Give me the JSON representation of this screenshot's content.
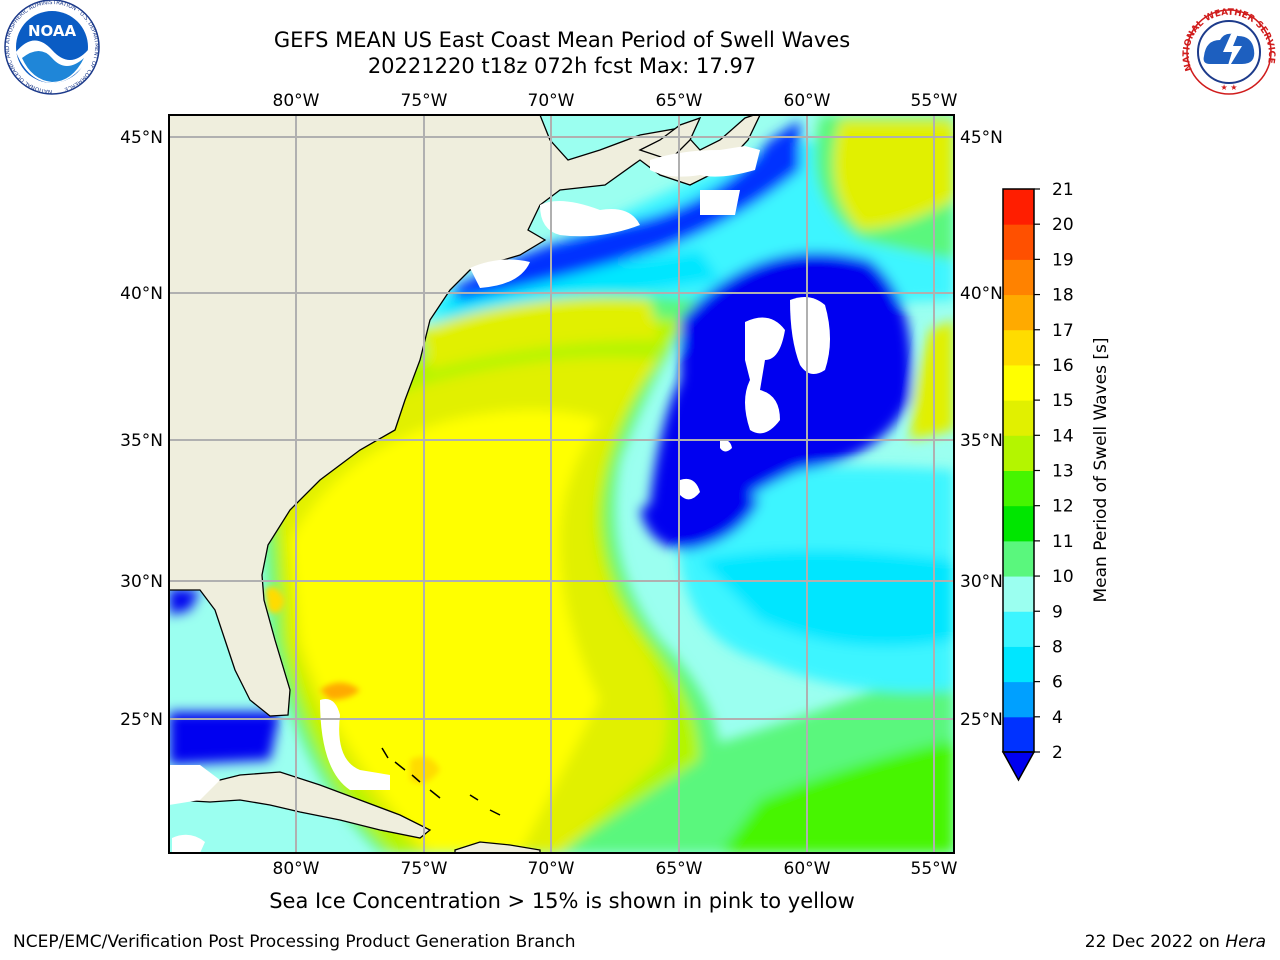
{
  "header": {
    "title_line1": "GEFS MEAN US East Coast Mean Period of Swell Waves",
    "title_line2": "20221220 t18z 072h fcst   Max: 17.97"
  },
  "logos": {
    "noaa_text": "NOAA",
    "noaa_ring_text": "NATIONAL OCEANIC AND ATMOSPHERIC ADMINISTRATION · U.S. DEPARTMENT OF COMMERCE",
    "nws_ring_text": "NATIONAL WEATHER SERVICE"
  },
  "map": {
    "lon_labels": [
      "80°W",
      "75°W",
      "70°W",
      "65°W",
      "60°W",
      "55°W"
    ],
    "lat_labels": [
      "45°N",
      "40°N",
      "35°N",
      "30°N",
      "25°N"
    ],
    "land_color": "#efeedd",
    "grid_color": "#b0b0b0"
  },
  "colorbar": {
    "label": "Mean Period of Swell Waves [s]",
    "ticks": [
      "2",
      "4",
      "6",
      "8",
      "9",
      "10",
      "11",
      "12",
      "13",
      "14",
      "15",
      "16",
      "17",
      "18",
      "19",
      "20",
      "21"
    ],
    "colors": [
      "#0032ff",
      "#00a0ff",
      "#00e6ff",
      "#3cf5ff",
      "#9bfff0",
      "#5af77d",
      "#00e600",
      "#46f500",
      "#b4f500",
      "#e1f000",
      "#ffff00",
      "#ffdc00",
      "#ffaa00",
      "#ff8200",
      "#ff5000",
      "#ff1e00"
    ],
    "under_color": "#0000f0"
  },
  "chart_data": {
    "type": "heatmap",
    "title": "GEFS MEAN US East Coast Mean Period of Swell Waves",
    "subtitle": "20221220 t18z 072h fcst   Max: 17.97",
    "colorbar_label": "Mean Period of Swell Waves [s]",
    "levels": [
      2,
      4,
      6,
      8,
      9,
      10,
      11,
      12,
      13,
      14,
      15,
      16,
      17,
      18,
      19,
      20,
      21
    ],
    "max": 17.97,
    "lon_range": [
      -85,
      -54
    ],
    "lat_range": [
      21,
      46
    ],
    "grid": true
  },
  "footer": {
    "ice_note": "Sea Ice Concentration > 15% is shown in pink to yellow",
    "credit": "NCEP/EMC/Verification Post Processing Product Generation Branch",
    "date": "22 Dec 2022 on ",
    "host": "Hera"
  }
}
